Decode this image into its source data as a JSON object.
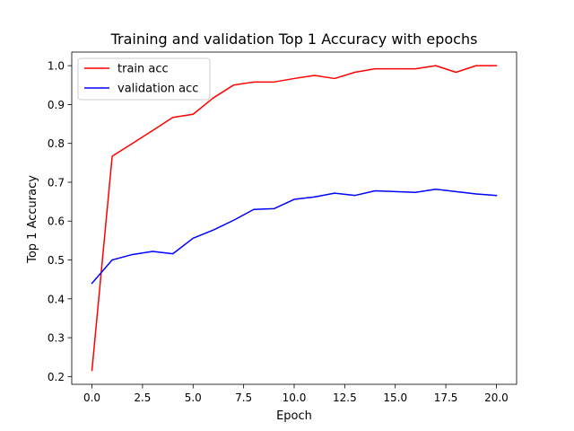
{
  "chart_data": {
    "type": "line",
    "title": "Training and validation Top 1 Accuracy with epochs",
    "xlabel": "Epoch",
    "ylabel": "Top 1 Accuracy",
    "xlim": [
      -1,
      21
    ],
    "ylim": [
      0.18,
      1.035
    ],
    "xticks": [
      0,
      2.5,
      5,
      7.5,
      10,
      12.5,
      15,
      17.5,
      20
    ],
    "xtick_labels": [
      "0.0",
      "2.5",
      "5.0",
      "7.5",
      "10.0",
      "12.5",
      "15.0",
      "17.5",
      "20.0"
    ],
    "yticks": [
      0.2,
      0.3,
      0.4,
      0.5,
      0.6,
      0.7,
      0.8,
      0.9,
      1.0
    ],
    "ytick_labels": [
      "0.2",
      "0.3",
      "0.4",
      "0.5",
      "0.6",
      "0.7",
      "0.8",
      "0.9",
      "1.0"
    ],
    "grid": false,
    "legend_position": "upper-left",
    "x": [
      0,
      1,
      2,
      3,
      4,
      5,
      6,
      7,
      8,
      9,
      10,
      11,
      12,
      13,
      14,
      15,
      16,
      17,
      18,
      19,
      20
    ],
    "series": [
      {
        "name": "train acc",
        "color": "#ff0000",
        "values": [
          0.216,
          0.767,
          0.8,
          0.833,
          0.867,
          0.875,
          0.917,
          0.95,
          0.958,
          0.958,
          0.967,
          0.975,
          0.967,
          0.983,
          0.992,
          0.992,
          0.992,
          1.0,
          0.983,
          1.0,
          1.0
        ]
      },
      {
        "name": "validation acc",
        "color": "#0000ff",
        "values": [
          0.44,
          0.5,
          0.514,
          0.522,
          0.516,
          0.556,
          0.577,
          0.602,
          0.63,
          0.632,
          0.656,
          0.662,
          0.672,
          0.666,
          0.678,
          0.676,
          0.674,
          0.682,
          0.676,
          0.67,
          0.666
        ]
      }
    ]
  }
}
